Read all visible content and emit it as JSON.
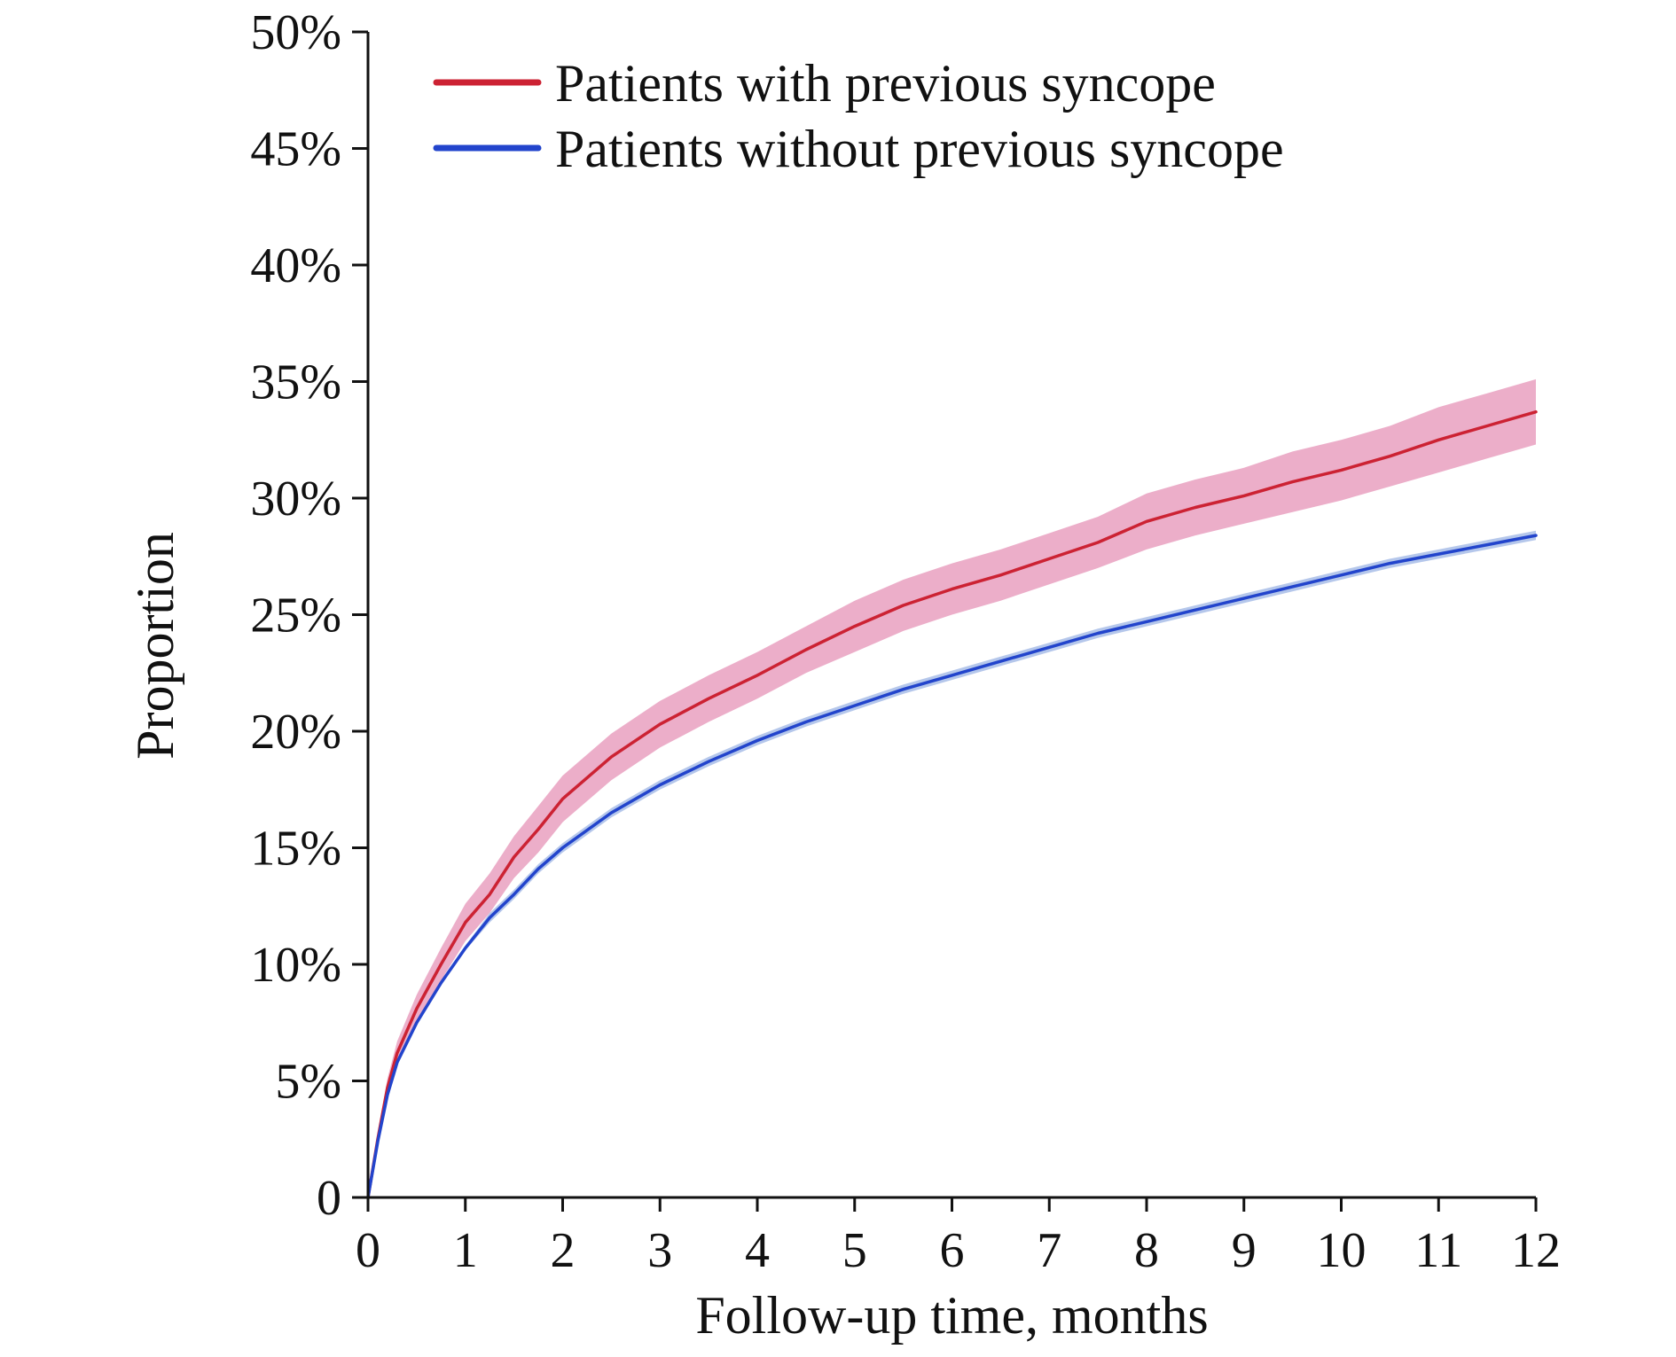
{
  "chart_data": {
    "type": "line",
    "title": "",
    "xlabel": "Follow-up time, months",
    "ylabel": "Proportion",
    "xlim": [
      0,
      12
    ],
    "ylim": [
      0,
      0.5
    ],
    "x_ticks": [
      0,
      1,
      2,
      3,
      4,
      5,
      6,
      7,
      8,
      9,
      10,
      11,
      12
    ],
    "x_tick_labels": [
      "0",
      "1",
      "2",
      "3",
      "4",
      "5",
      "6",
      "7",
      "8",
      "9",
      "10",
      "11",
      "12"
    ],
    "y_ticks": [
      0,
      0.05,
      0.1,
      0.15,
      0.2,
      0.25,
      0.3,
      0.35,
      0.4,
      0.45,
      0.5
    ],
    "y_tick_labels": [
      "0",
      "5%",
      "10%",
      "15%",
      "20%",
      "25%",
      "30%",
      "35%",
      "40%",
      "45%",
      "50%"
    ],
    "grid": false,
    "legend_position": "top-left",
    "series": [
      {
        "name": "Patients with previous syncope",
        "color": "#cc2233",
        "band_color": "#e9a0c0",
        "x": [
          0,
          0.1,
          0.2,
          0.3,
          0.5,
          0.75,
          1,
          1.25,
          1.5,
          1.75,
          2,
          2.5,
          3,
          3.5,
          4,
          4.5,
          5,
          5.5,
          6,
          6.5,
          7,
          7.5,
          8,
          8.5,
          9,
          9.5,
          10,
          10.5,
          11,
          11.5,
          12
        ],
        "values": [
          0,
          0.025,
          0.047,
          0.062,
          0.081,
          0.1,
          0.118,
          0.13,
          0.146,
          0.158,
          0.171,
          0.189,
          0.203,
          0.214,
          0.224,
          0.235,
          0.245,
          0.254,
          0.261,
          0.267,
          0.274,
          0.281,
          0.29,
          0.296,
          0.301,
          0.307,
          0.312,
          0.318,
          0.325,
          0.331,
          0.337
        ],
        "lower": [
          0,
          0.022,
          0.043,
          0.057,
          0.075,
          0.093,
          0.11,
          0.122,
          0.137,
          0.148,
          0.161,
          0.179,
          0.193,
          0.204,
          0.214,
          0.225,
          0.234,
          0.243,
          0.25,
          0.256,
          0.263,
          0.27,
          0.278,
          0.284,
          0.289,
          0.294,
          0.299,
          0.305,
          0.311,
          0.317,
          0.323
        ],
        "upper": [
          0,
          0.028,
          0.051,
          0.067,
          0.087,
          0.107,
          0.126,
          0.139,
          0.155,
          0.168,
          0.181,
          0.199,
          0.213,
          0.224,
          0.234,
          0.245,
          0.256,
          0.265,
          0.272,
          0.278,
          0.285,
          0.292,
          0.302,
          0.308,
          0.313,
          0.32,
          0.325,
          0.331,
          0.339,
          0.345,
          0.351
        ]
      },
      {
        "name": "Patients without previous syncope",
        "color": "#2244cc",
        "band_color": "#a8bde8",
        "x": [
          0,
          0.1,
          0.2,
          0.3,
          0.5,
          0.75,
          1,
          1.25,
          1.5,
          1.75,
          2,
          2.5,
          3,
          3.5,
          4,
          4.5,
          5,
          5.5,
          6,
          6.5,
          7,
          7.5,
          8,
          8.5,
          9,
          9.5,
          10,
          10.5,
          11,
          11.5,
          12
        ],
        "values": [
          0,
          0.024,
          0.044,
          0.058,
          0.075,
          0.092,
          0.107,
          0.12,
          0.13,
          0.141,
          0.15,
          0.165,
          0.177,
          0.187,
          0.196,
          0.204,
          0.211,
          0.218,
          0.224,
          0.23,
          0.236,
          0.242,
          0.247,
          0.252,
          0.257,
          0.262,
          0.267,
          0.272,
          0.276,
          0.28,
          0.284
        ],
        "lower": [
          0,
          0.023,
          0.043,
          0.057,
          0.074,
          0.091,
          0.106,
          0.118,
          0.128,
          0.139,
          0.148,
          0.163,
          0.175,
          0.185,
          0.194,
          0.202,
          0.209,
          0.216,
          0.222,
          0.228,
          0.234,
          0.24,
          0.245,
          0.25,
          0.255,
          0.26,
          0.265,
          0.27,
          0.274,
          0.278,
          0.282
        ],
        "upper": [
          0,
          0.025,
          0.045,
          0.059,
          0.076,
          0.093,
          0.108,
          0.122,
          0.132,
          0.143,
          0.152,
          0.167,
          0.179,
          0.189,
          0.198,
          0.206,
          0.213,
          0.22,
          0.226,
          0.232,
          0.238,
          0.244,
          0.249,
          0.254,
          0.259,
          0.264,
          0.269,
          0.274,
          0.278,
          0.282,
          0.286
        ]
      }
    ]
  }
}
